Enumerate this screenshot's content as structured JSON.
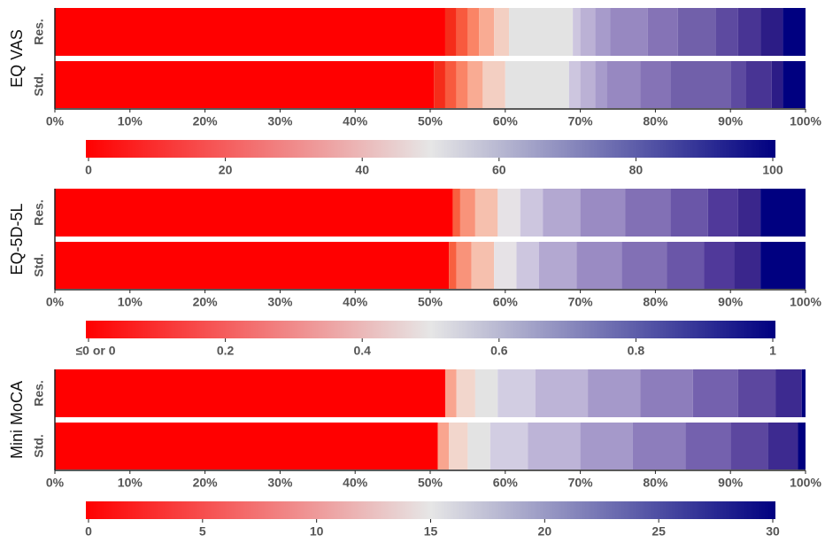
{
  "chart_data": [
    {
      "type": "stacked-bar-h",
      "title": "EQ VAS",
      "categories": [
        "Res.",
        "Std."
      ],
      "xlim": [
        0,
        100
      ],
      "xticks": [
        {
          "value": 0,
          "label": "0%"
        },
        {
          "value": 10,
          "label": "10%"
        },
        {
          "value": 20,
          "label": "20%"
        },
        {
          "value": 30,
          "label": "30%"
        },
        {
          "value": 40,
          "label": "40%"
        },
        {
          "value": 50,
          "label": "50%"
        },
        {
          "value": 60,
          "label": "60%"
        },
        {
          "value": 70,
          "label": "70%"
        },
        {
          "value": 80,
          "label": "80%"
        },
        {
          "value": 90,
          "label": "90%"
        },
        {
          "value": 100,
          "label": "100%"
        }
      ],
      "series": [
        {
          "color": "#ff0000",
          "values": [
            52,
            50.5
          ]
        },
        {
          "color": "#f52d1a",
          "values": [
            1.5,
            1.5
          ]
        },
        {
          "color": "#f85a3e",
          "values": [
            1.5,
            1.5
          ]
        },
        {
          "color": "#fa8466",
          "values": [
            1.5,
            1.5
          ]
        },
        {
          "color": "#f9ab93",
          "values": [
            2,
            2
          ]
        },
        {
          "color": "#f3cfc2",
          "values": [
            2,
            3
          ]
        },
        {
          "color": "#e3e3e3",
          "values": [
            8.5,
            8.5
          ]
        },
        {
          "color": "#cdc6df",
          "values": [
            1,
            1.5
          ]
        },
        {
          "color": "#bbb1d5",
          "values": [
            2,
            2
          ]
        },
        {
          "color": "#a79bcb",
          "values": [
            2,
            1.5
          ]
        },
        {
          "color": "#9788c1",
          "values": [
            5,
            4.5
          ]
        },
        {
          "color": "#8573b6",
          "values": [
            4,
            4
          ]
        },
        {
          "color": "#7160aa",
          "values": [
            5,
            8
          ]
        },
        {
          "color": "#5d4aa0",
          "values": [
            3,
            2
          ]
        },
        {
          "color": "#483494",
          "values": [
            3,
            3.5
          ]
        },
        {
          "color": "#2c1c86",
          "values": [
            3,
            1.5
          ]
        },
        {
          "color": "#000080",
          "values": [
            3,
            3
          ]
        }
      ],
      "colorbar": {
        "colors": [
          "#ff0000",
          "#e6e6e6",
          "#000080"
        ],
        "lim": [
          0,
          100
        ],
        "ticks": [
          0,
          20,
          40,
          60,
          80,
          100
        ]
      }
    },
    {
      "type": "stacked-bar-h",
      "title": "EQ-5D-5L",
      "categories": [
        "Res.",
        "Std."
      ],
      "xlim": [
        0,
        100
      ],
      "xticks": [
        {
          "value": 0,
          "label": "0%"
        },
        {
          "value": 10,
          "label": "10%"
        },
        {
          "value": 20,
          "label": "20%"
        },
        {
          "value": 30,
          "label": "30%"
        },
        {
          "value": 40,
          "label": "40%"
        },
        {
          "value": 50,
          "label": "50%"
        },
        {
          "value": 60,
          "label": "60%"
        },
        {
          "value": 70,
          "label": "70%"
        },
        {
          "value": 80,
          "label": "80%"
        },
        {
          "value": 90,
          "label": "90%"
        },
        {
          "value": 100,
          "label": "100%"
        }
      ],
      "series": [
        {
          "color": "#ff0000",
          "values": [
            53,
            52.5
          ]
        },
        {
          "color": "#f8603f",
          "values": [
            1,
            1
          ]
        },
        {
          "color": "#f9937a",
          "values": [
            2,
            2
          ]
        },
        {
          "color": "#f6c0ae",
          "values": [
            3,
            3
          ]
        },
        {
          "color": "#e6e2e6",
          "values": [
            3,
            3
          ]
        },
        {
          "color": "#cdc6df",
          "values": [
            3,
            3
          ]
        },
        {
          "color": "#b3a8d1",
          "values": [
            5,
            5
          ]
        },
        {
          "color": "#9a8bc3",
          "values": [
            6,
            6
          ]
        },
        {
          "color": "#8270b5",
          "values": [
            6,
            6
          ]
        },
        {
          "color": "#6a56a8",
          "values": [
            5,
            5
          ]
        },
        {
          "color": "#50399a",
          "values": [
            4,
            4
          ]
        },
        {
          "color": "#3a268c",
          "values": [
            3,
            3.5
          ]
        },
        {
          "color": "#000080",
          "values": [
            6,
            6
          ]
        }
      ],
      "colorbar": {
        "colors": [
          "#ff0000",
          "#e6e6e6",
          "#000080"
        ],
        "lim": [
          0,
          1
        ],
        "ticks": [
          {
            "value": 0,
            "label": "≤0 or 0"
          },
          0.2,
          0.4,
          0.6,
          0.8,
          1
        ]
      }
    },
    {
      "type": "stacked-bar-h",
      "title": "Mini MoCA",
      "categories": [
        "Res.",
        "Std."
      ],
      "xlim": [
        0,
        100
      ],
      "xticks": [
        {
          "value": 0,
          "label": "0%"
        },
        {
          "value": 10,
          "label": "10%"
        },
        {
          "value": 20,
          "label": "20%"
        },
        {
          "value": 30,
          "label": "30%"
        },
        {
          "value": 40,
          "label": "40%"
        },
        {
          "value": 50,
          "label": "50%"
        },
        {
          "value": 60,
          "label": "60%"
        },
        {
          "value": 70,
          "label": "70%"
        },
        {
          "value": 80,
          "label": "80%"
        },
        {
          "value": 90,
          "label": "90%"
        },
        {
          "value": 100,
          "label": "100%"
        }
      ],
      "series": [
        {
          "color": "#ff0000",
          "values": [
            52,
            51
          ]
        },
        {
          "color": "#f9a58f",
          "values": [
            1.5,
            1.5
          ]
        },
        {
          "color": "#f2d6cc",
          "values": [
            2.5,
            2.5
          ]
        },
        {
          "color": "#e3e3e3",
          "values": [
            3,
            3
          ]
        },
        {
          "color": "#d2cde2",
          "values": [
            5,
            5
          ]
        },
        {
          "color": "#bdb4d7",
          "values": [
            7,
            7
          ]
        },
        {
          "color": "#a599ca",
          "values": [
            7,
            7
          ]
        },
        {
          "color": "#8d7dbc",
          "values": [
            7,
            7
          ]
        },
        {
          "color": "#7461ae",
          "values": [
            6,
            6
          ]
        },
        {
          "color": "#5c479f",
          "values": [
            5,
            5
          ]
        },
        {
          "color": "#3d2a90",
          "values": [
            3.5,
            4
          ]
        },
        {
          "color": "#000080",
          "values": [
            0.5,
            1
          ]
        }
      ],
      "colorbar": {
        "colors": [
          "#ff0000",
          "#e6e6e6",
          "#000080"
        ],
        "lim": [
          0,
          30
        ],
        "ticks": [
          0,
          5,
          10,
          15,
          20,
          25,
          30
        ]
      }
    }
  ]
}
